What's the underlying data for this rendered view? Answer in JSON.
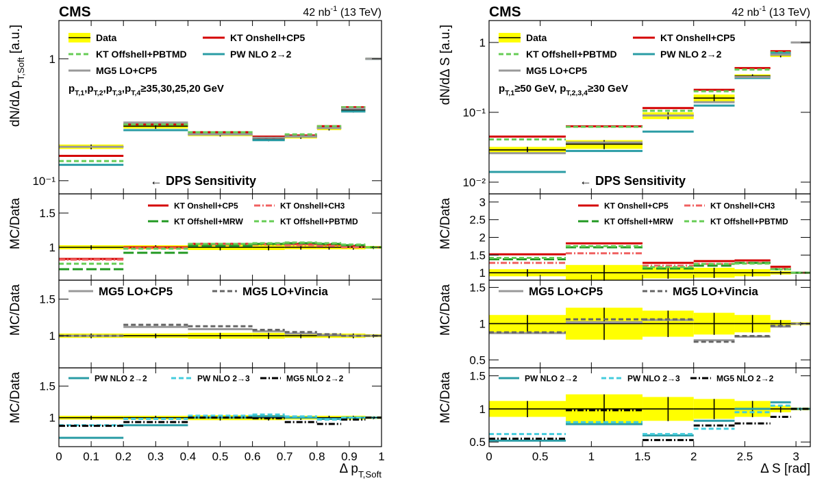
{
  "chart_data": [
    {
      "type": "histogram",
      "cms": "CMS",
      "lumi": [
        "42 nb",
        "-1",
        " (13 TeV)"
      ],
      "bins": [
        0,
        0.2,
        0.4,
        0.6,
        0.7,
        0.8,
        0.875,
        0.95,
        1.0
      ],
      "xlim": [
        0,
        1
      ],
      "xticks": [
        0,
        0.1,
        0.2,
        0.3,
        0.4,
        0.5,
        0.6,
        0.7,
        0.8,
        0.9,
        1
      ],
      "xlabel": [
        "Δ p",
        "T,Soft"
      ],
      "panels": [
        {
          "log": true,
          "ylim": [
            0.078,
            2.06
          ],
          "yticks": [
            {
              "value": 0.1,
              "label": "10⁻¹"
            },
            1
          ],
          "ylabel": [
            "dN/dΔ p",
            "T,Soft",
            " [a.u.]"
          ],
          "annotation": [
            "p",
            "T,1",
            ",p",
            "T,2",
            ",p",
            "T,3",
            ",p",
            "T,4",
            "≥35,30,25,20 GeV"
          ],
          "sensitivity": "← DPS Sensitivity",
          "series": [
            {
              "name": "Data",
              "color": "#000000",
              "band_color": "#ffff00",
              "style": "solid",
              "values": [
                0.19,
                0.28,
                0.24,
                0.22,
                0.23,
                0.27,
                0.38,
                1.0
              ],
              "errors": [
                0.008,
                0.012,
                0.008,
                0.008,
                0.008,
                0.01,
                0.015,
                0.01
              ]
            },
            {
              "name": "KT Onshell+CP5",
              "color": "#d40000",
              "style": "solid",
              "values": [
                0.16,
                0.29,
                0.25,
                0.23,
                0.235,
                0.28,
                0.4,
                1.0
              ]
            },
            {
              "name": "KT Offshell+PBTMD",
              "color": "#66cc55",
              "style": "dashed",
              "values": [
                0.145,
                0.29,
                0.25,
                0.225,
                0.24,
                0.28,
                0.4,
                1.0
              ]
            },
            {
              "name": "PW NLO 2→2",
              "color": "#2a9ca5",
              "style": "solid",
              "values": [
                0.135,
                0.26,
                0.24,
                0.215,
                0.23,
                0.27,
                0.37,
                1.0
              ]
            },
            {
              "name": "MG5 LO+CP5",
              "color": "#999999",
              "style": "solid",
              "values": [
                0.19,
                0.3,
                0.24,
                0.225,
                0.23,
                0.27,
                0.39,
                1.0
              ]
            }
          ]
        },
        {
          "log": false,
          "ylim": [
            0.52,
            1.78
          ],
          "yticks": [
            1,
            1.5
          ],
          "ylabel": [
            "MC/Data"
          ],
          "series": [
            {
              "color": "#000000",
              "band_color": "#ffff00",
              "style": "solid",
              "values": [
                1,
                1,
                1,
                1,
                1,
                1,
                1,
                1
              ],
              "errors": [
                0.03,
                0.03,
                0.04,
                0.04,
                0.03,
                0.03,
                0.03,
                0.02
              ]
            },
            {
              "name": "KT Onshell+CP5",
              "color": "#d40000",
              "style": "solid",
              "values": [
                0.83,
                1.0,
                1.05,
                1.05,
                1.05,
                1.04,
                1.02,
                1.0
              ]
            },
            {
              "name": "KT Onshell+CH3",
              "color": "#f06060",
              "style": "dashdot",
              "values": [
                0.82,
                0.99,
                1.04,
                1.04,
                1.03,
                1.02,
                1.0,
                1.0
              ]
            },
            {
              "name": "KT Offshell+MRW",
              "color": "#229922",
              "style": "longdash",
              "values": [
                0.68,
                0.92,
                1.02,
                1.05,
                1.06,
                1.05,
                1.03,
                1.0
              ]
            },
            {
              "name": "KT Offshell+PBTMD",
              "color": "#66cc55",
              "style": "dashed",
              "values": [
                0.76,
                0.98,
                1.05,
                1.06,
                1.07,
                1.06,
                1.04,
                1.0
              ]
            }
          ]
        },
        {
          "log": false,
          "ylim": [
            0.56,
            1.76
          ],
          "yticks": [
            1,
            1.5
          ],
          "ylabel": [
            "MC/Data"
          ],
          "series": [
            {
              "color": "#000000",
              "band_color": "#ffff00",
              "style": "solid",
              "values": [
                1,
                1,
                1,
                1,
                1,
                1,
                1,
                1
              ],
              "errors": [
                0.03,
                0.03,
                0.04,
                0.04,
                0.03,
                0.03,
                0.03,
                0.02
              ]
            },
            {
              "name": "MG5 LO+CP5",
              "color": "#999999",
              "style": "solid",
              "values": [
                1.0,
                1.12,
                1.09,
                1.06,
                1.03,
                1.01,
                1.0,
                1.0
              ]
            },
            {
              "name": "MG5 LO+Vincia",
              "color": "#666666",
              "style": "dashed",
              "values": [
                1.0,
                1.15,
                1.13,
                1.08,
                1.05,
                1.02,
                1.0,
                1.0
              ]
            }
          ]
        },
        {
          "log": false,
          "ylim": [
            0.54,
            1.79
          ],
          "yticks": [
            1,
            1.5
          ],
          "ylabel": [
            "MC/Data"
          ],
          "series": [
            {
              "color": "#000000",
              "band_color": "#ffff00",
              "style": "solid",
              "values": [
                1,
                1,
                1,
                1,
                1,
                1,
                1,
                1
              ],
              "errors": [
                0.03,
                0.03,
                0.04,
                0.04,
                0.03,
                0.03,
                0.03,
                0.02
              ]
            },
            {
              "name": "PW NLO 2→2",
              "color": "#2a9ca5",
              "style": "solid",
              "values": [
                0.68,
                0.88,
                1.0,
                1.02,
                1.0,
                0.98,
                1.0,
                1.0
              ]
            },
            {
              "name": "PW NLO 2→3",
              "color": "#44ccdd",
              "style": "dashed",
              "values": [
                0.88,
                0.98,
                1.03,
                1.05,
                1.02,
                0.97,
                1.0,
                1.0
              ]
            },
            {
              "name": "MG5 NLO 2→2",
              "color": "#000000",
              "style": "dashdot",
              "values": [
                0.87,
                0.93,
                1.0,
                0.99,
                0.93,
                0.9,
                0.97,
                1.0
              ]
            }
          ]
        }
      ]
    },
    {
      "type": "histogram",
      "cms": "CMS",
      "lumi": [
        "42 nb",
        "-1",
        " (13 TeV)"
      ],
      "bins": [
        0,
        0.75,
        1.5,
        2.0,
        2.4,
        2.75,
        2.95,
        3.14
      ],
      "xlim": [
        0,
        3.14
      ],
      "xticks": [
        0,
        0.5,
        1,
        1.5,
        2,
        2.5,
        3
      ],
      "xlabel": [
        "Δ S [rad]"
      ],
      "panels": [
        {
          "log": true,
          "ylim": [
            0.0068,
            2.06
          ],
          "yticks": [
            {
              "value": 0.01,
              "label": "10⁻²"
            },
            {
              "value": 0.1,
              "label": "10⁻¹"
            },
            1
          ],
          "ylabel": [
            "dN/dΔ S [a.u.]"
          ],
          "annotation": [
            "p",
            "T,1",
            "≥50 GeV, p",
            "T,2,3,4",
            "≥30 GeV"
          ],
          "sensitivity": "← DPS Sensitivity",
          "series": [
            {
              "name": "Data",
              "color": "#000000",
              "band_color": "#ffff00",
              "style": "solid",
              "values": [
                0.029,
                0.035,
                0.09,
                0.16,
                0.33,
                0.66,
                1.0
              ],
              "errors": [
                0.003,
                0.005,
                0.01,
                0.02,
                0.02,
                0.04,
                0.02
              ]
            },
            {
              "name": "KT Onshell+CP5",
              "color": "#d40000",
              "style": "solid",
              "values": [
                0.045,
                0.063,
                0.115,
                0.21,
                0.43,
                0.75,
                1.0
              ]
            },
            {
              "name": "KT Offshell+PBTMD",
              "color": "#66cc55",
              "style": "dashed",
              "values": [
                0.041,
                0.062,
                0.105,
                0.2,
                0.41,
                0.72,
                1.0
              ]
            },
            {
              "name": "PW NLO 2→2",
              "color": "#2a9ca5",
              "style": "solid",
              "values": [
                0.014,
                0.028,
                0.053,
                0.125,
                0.31,
                0.7,
                1.0
              ]
            },
            {
              "name": "MG5 LO+CP5",
              "color": "#999999",
              "style": "solid",
              "values": [
                0.026,
                0.037,
                0.09,
                0.14,
                0.32,
                0.67,
                1.0
              ]
            }
          ]
        },
        {
          "log": false,
          "ylim": [
            0.79,
            3.23
          ],
          "yticks": [
            1,
            1.5,
            2,
            2.5,
            3
          ],
          "ylabel": [
            "MC/Data"
          ],
          "series": [
            {
              "color": "#000000",
              "band_color": "#ffff00",
              "style": "solid",
              "values": [
                1,
                1,
                1,
                1,
                1,
                1,
                1
              ],
              "errors": [
                0.1,
                0.22,
                0.16,
                0.14,
                0.1,
                0.05,
                0.02
              ]
            },
            {
              "name": "KT Onshell+CP5",
              "color": "#d40000",
              "style": "solid",
              "values": [
                1.52,
                1.83,
                1.28,
                1.33,
                1.35,
                1.17,
                1.0
              ]
            },
            {
              "name": "KT Onshell+CH3",
              "color": "#f06060",
              "style": "dashdot",
              "values": [
                1.28,
                1.55,
                1.2,
                1.25,
                1.28,
                1.12,
                1.0
              ]
            },
            {
              "name": "KT Offshell+MRW",
              "color": "#229922",
              "style": "longdash",
              "values": [
                1.38,
                1.72,
                1.12,
                1.2,
                1.28,
                1.1,
                1.0
              ]
            },
            {
              "name": "KT Offshell+PBTMD",
              "color": "#66cc55",
              "style": "dashed",
              "values": [
                1.42,
                1.75,
                1.16,
                1.25,
                1.26,
                1.1,
                1.0
              ]
            }
          ]
        },
        {
          "log": false,
          "ylim": [
            0.39,
            1.6
          ],
          "yticks": [
            0.5,
            1,
            1.5
          ],
          "ylabel": [
            "MC/Data"
          ],
          "series": [
            {
              "color": "#000000",
              "band_color": "#ffff00",
              "style": "solid",
              "values": [
                1,
                1,
                1,
                1,
                1,
                1,
                1
              ],
              "errors": [
                0.12,
                0.22,
                0.18,
                0.15,
                0.12,
                0.05,
                0.02
              ]
            },
            {
              "name": "MG5 LO+CP5",
              "color": "#999999",
              "style": "solid",
              "values": [
                0.87,
                1.02,
                1.05,
                0.77,
                0.82,
                0.96,
                1.0
              ]
            },
            {
              "name": "MG5 LO+Vincia",
              "color": "#666666",
              "style": "dashed",
              "values": [
                0.88,
                1.06,
                1.06,
                0.75,
                0.83,
                0.97,
                1.0
              ]
            }
          ]
        },
        {
          "log": false,
          "ylim": [
            0.43,
            1.62
          ],
          "yticks": [
            0.5,
            1,
            1.5
          ],
          "ylabel": [
            "MC/Data"
          ],
          "series": [
            {
              "color": "#000000",
              "band_color": "#ffff00",
              "style": "solid",
              "values": [
                1,
                1,
                1,
                1,
                1,
                1,
                1
              ],
              "errors": [
                0.12,
                0.22,
                0.18,
                0.15,
                0.12,
                0.05,
                0.02
              ]
            },
            {
              "name": "PW NLO 2→2",
              "color": "#2a9ca5",
              "style": "solid",
              "values": [
                0.52,
                0.77,
                0.6,
                0.82,
                1.0,
                1.1,
                1.0
              ]
            },
            {
              "name": "PW NLO 2→3",
              "color": "#44ccdd",
              "style": "dashed",
              "values": [
                0.62,
                0.8,
                0.62,
                0.7,
                0.95,
                1.05,
                1.0
              ]
            },
            {
              "name": "MG5 NLO 2→2",
              "color": "#000000",
              "style": "dashdot",
              "values": [
                0.55,
                0.98,
                0.53,
                0.75,
                0.78,
                0.88,
                1.0
              ]
            }
          ]
        }
      ]
    }
  ]
}
